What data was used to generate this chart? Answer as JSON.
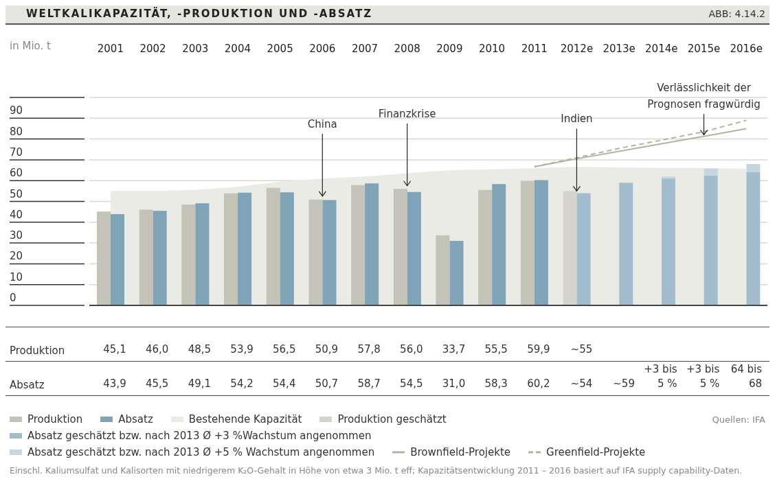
{
  "chart_data": {
    "type": "bar",
    "title": "WELTKALIKAPAZITÄT, -PRODUKTION UND -ABSATZ",
    "ylabel": "in Mio. t",
    "categories": [
      "2001",
      "2002",
      "2003",
      "2004",
      "2005",
      "2006",
      "2007",
      "2008",
      "2009",
      "2010",
      "2011",
      "2012e",
      "2013e",
      "2014e",
      "2015e",
      "2016e"
    ],
    "ylim": [
      0,
      100
    ],
    "yticks": [
      0,
      10,
      20,
      30,
      40,
      50,
      60,
      70,
      80,
      90,
      {
        "value": 100,
        "label": null
      }
    ],
    "grid": "y",
    "legend": "bottom",
    "series": [
      {
        "name": "Produktion",
        "color": "#c4c3b8",
        "colors": [
          "#c4c3b8",
          "#c4c3b8",
          "#c4c3b8",
          "#c4c3b8",
          "#c4c3b8",
          "#c4c3b8",
          "#c4c3b8",
          "#c4c3b8",
          "#c4c3b8",
          "#c4c3b8",
          "#c4c3b8",
          "#d5d4cc",
          null,
          null,
          null,
          null
        ],
        "values": [
          45.1,
          46.0,
          48.5,
          53.9,
          56.5,
          50.9,
          57.8,
          56.0,
          33.7,
          55.5,
          59.9,
          55,
          null,
          null,
          null,
          null
        ],
        "value_labels": [
          "45,1",
          "46,0",
          "48,5",
          "53,9",
          "56,5",
          "50,9",
          "57,8",
          "56,0",
          "33,7",
          "55,5",
          "59,9",
          "~55",
          null,
          null,
          null,
          null
        ]
      },
      {
        "name": "Absatz",
        "color": "#7fa3b7",
        "colors": [
          "#7fa3b7",
          "#7fa3b7",
          "#7fa3b7",
          "#7fa3b7",
          "#7fa3b7",
          "#7fa3b7",
          "#7fa3b7",
          "#7fa3b7",
          "#7fa3b7",
          "#7fa3b7",
          "#7fa3b7",
          "#a3bccd",
          "#a3bccd",
          "#a3bccd",
          "#a3bccd",
          "#a3bccd"
        ],
        "values": [
          43.9,
          45.5,
          49.1,
          54.2,
          54.4,
          50.7,
          58.7,
          54.5,
          31.0,
          58.3,
          60.2,
          54,
          59,
          61,
          62.5,
          64
        ],
        "value_labels": [
          "43,9",
          "45,5",
          "49,1",
          "54,2",
          "54,4",
          "50,7",
          "58,7",
          "54,5",
          "31,0",
          "58,3",
          "60,2",
          "~54",
          "~59",
          null,
          null,
          null
        ]
      },
      {
        "name": "Bestehende Kapazität",
        "type": "area",
        "color": "#ebebe6",
        "values": [
          55,
          55,
          55.5,
          57,
          59.5,
          61,
          62,
          63.5,
          65,
          65.4,
          66,
          66.7,
          66.3,
          66.1,
          66,
          65.7
        ]
      },
      {
        "name": "Produktion geschätzt",
        "color": "#d5d4cc",
        "values": [
          null,
          null,
          null,
          null,
          null,
          null,
          null,
          null,
          null,
          null,
          null,
          null,
          null,
          null,
          null,
          null
        ]
      },
      {
        "name": "Absatz geschätzt bzw. nach 2013 Ø +3 %Wachstum angenommen",
        "color": "#a3bccd",
        "values": [
          null,
          null,
          null,
          null,
          null,
          null,
          null,
          null,
          null,
          null,
          null,
          null,
          null,
          null,
          null,
          null
        ]
      },
      {
        "name": "Absatz geschätzt bzw. nach 2013 Ø +5 % Wachstum angenommen",
        "color": "#c6d6e1",
        "base": [
          null,
          null,
          null,
          null,
          null,
          null,
          null,
          null,
          null,
          null,
          null,
          null,
          null,
          61,
          62.5,
          64
        ],
        "values": [
          null,
          null,
          null,
          null,
          null,
          null,
          null,
          null,
          null,
          null,
          null,
          null,
          null,
          1,
          3.3,
          4
        ]
      },
      {
        "name": "Brownfield-Projekte",
        "type": "line",
        "color": "#b3b2a3",
        "line_style": "solid",
        "values": [
          null,
          null,
          null,
          null,
          null,
          null,
          null,
          null,
          null,
          null,
          66.7,
          70.5,
          74.1,
          77.7,
          81.3,
          85
        ]
      },
      {
        "name": "Greenfield-Projekte",
        "type": "line",
        "color": "#b3b2a3",
        "line_style": "dashed",
        "values": [
          null,
          null,
          null,
          null,
          null,
          null,
          null,
          null,
          null,
          null,
          66.7,
          71,
          75.5,
          79.5,
          83.5,
          89
        ]
      }
    ],
    "annotations": [
      "ABB: 4.14.2",
      "Quellen: IFA",
      "Einschl. Kaliumsulfat und Kalisorten mit niedrigerem K₂O-Gehalt in Höhe von etwa 3 Mio. t eff; Kapazitätsentwicklung 2011 – 2016 basiert auf IFA supply capability-Daten.",
      {
        "text": "China",
        "x": "2006",
        "y": 52.5
      },
      {
        "text": "Finanzkrise",
        "x": "2008",
        "y": 57.5
      },
      {
        "text": "Indien",
        "x": "2012e",
        "y": 55
      },
      {
        "text": "Verlässlichkeit der Prognosen fragwürdig",
        "x": "2015e",
        "y": 82
      },
      "+3 bis 5 %",
      "+3 bis 5 %",
      "64 bis 68"
    ]
  }
}
